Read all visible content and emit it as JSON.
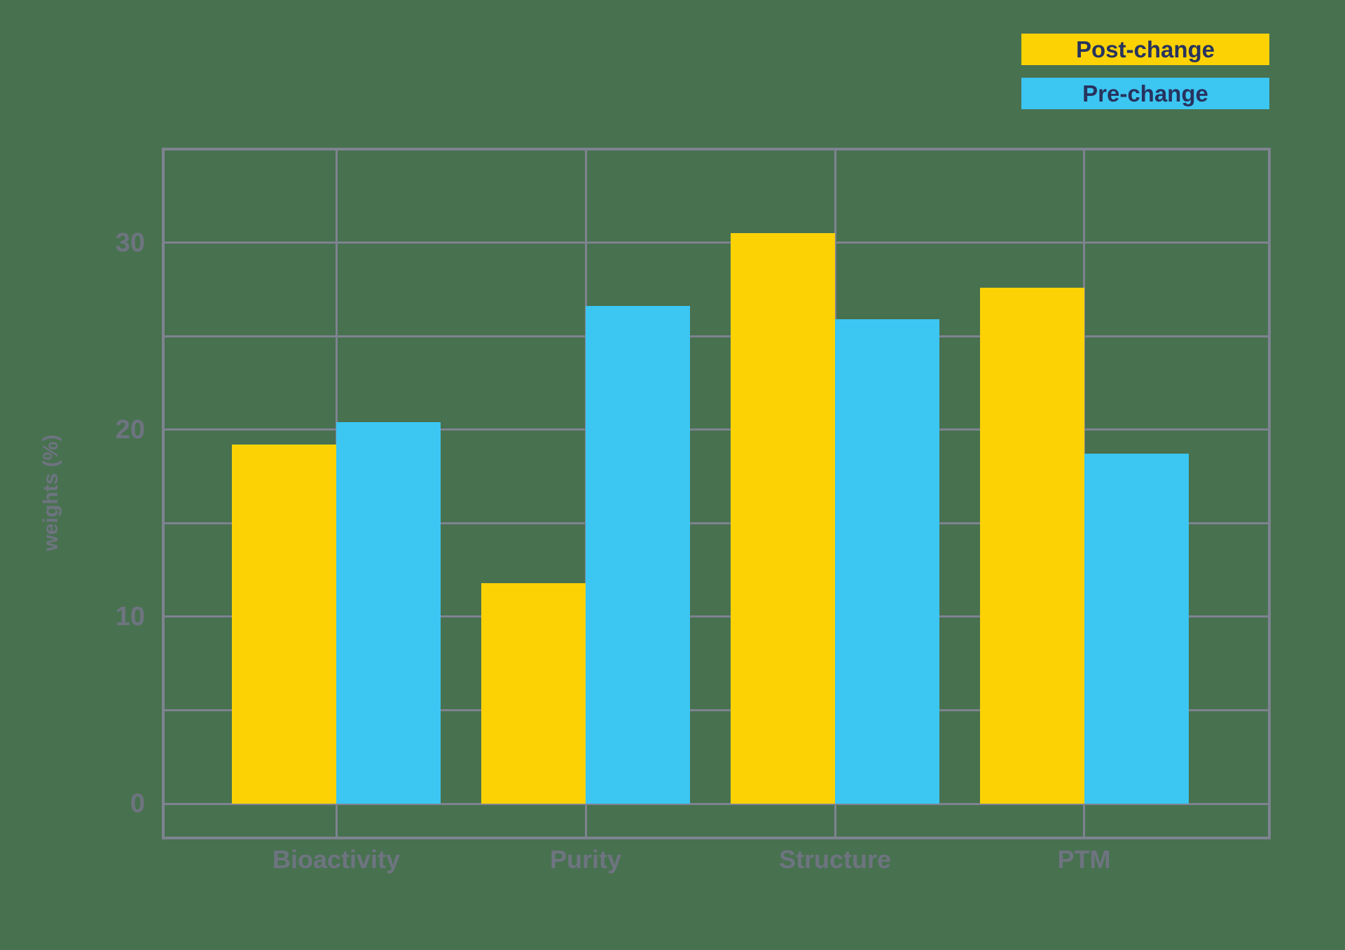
{
  "chart_data": {
    "type": "bar",
    "orientation": "vertical",
    "grouped": true,
    "categories": [
      "Bioactivity",
      "Purity",
      "Structure",
      "PTM"
    ],
    "series": [
      {
        "name": "Post-change",
        "color": "#fcd205",
        "values": [
          19.2,
          11.8,
          30.5,
          27.6
        ]
      },
      {
        "name": "Pre-change",
        "color": "#3cc6f2",
        "values": [
          20.4,
          26.6,
          25.9,
          18.7
        ]
      }
    ],
    "ylabel": "weights (%)",
    "yticks": [
      0,
      10,
      20,
      30
    ],
    "ytick_labels": [
      "0",
      "10",
      "20",
      "30"
    ],
    "ylim": [
      -1.8,
      35
    ],
    "gridline_interval": 5,
    "grid": true,
    "frame": true,
    "legend_position": "top-right"
  },
  "colors": {
    "background": "#487150",
    "grid": "#7e8390",
    "axis_text": "#6e7480",
    "legend_text": "#27335e",
    "post_change_bar": "#fcd205",
    "pre_change_bar": "#3cc6f2"
  }
}
